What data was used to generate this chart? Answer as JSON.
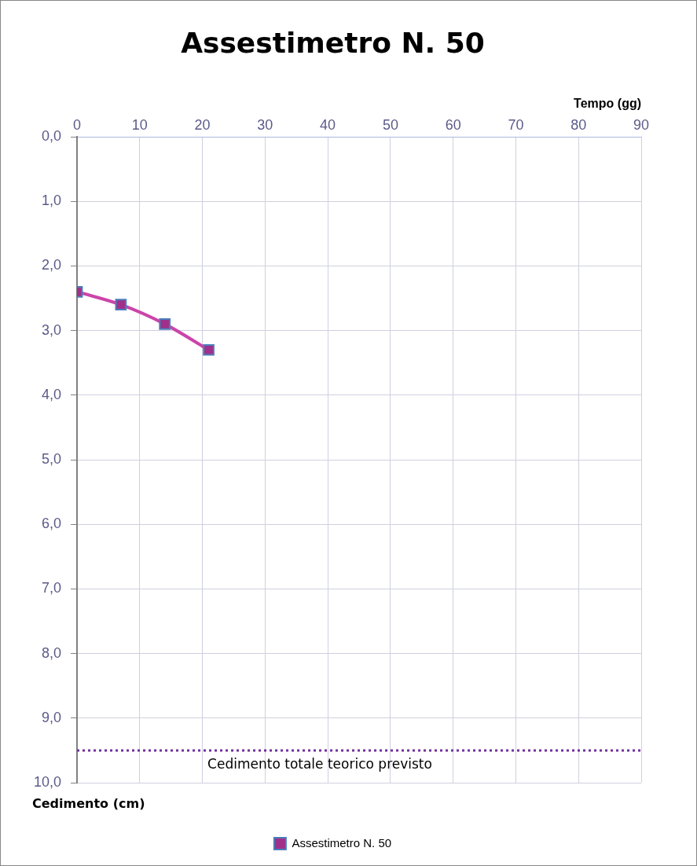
{
  "chart_data": {
    "type": "line",
    "title": "Assestimetro N. 50",
    "xlabel": "Tempo (gg)",
    "ylabel": "Cedimento (cm)",
    "series": [
      {
        "name": "Assestimetro N. 50",
        "color": "#cc44aa",
        "x": [
          0,
          7,
          14,
          21
        ],
        "values": [
          2.4,
          2.6,
          2.9,
          3.3
        ]
      }
    ],
    "xlim": [
      0,
      90
    ],
    "xticks": [
      0,
      10,
      20,
      30,
      40,
      50,
      60,
      70,
      80,
      90
    ],
    "ylim": [
      10,
      0
    ],
    "yticks": [
      {
        "value": 0,
        "label": "0,0"
      },
      {
        "value": 1,
        "label": "1,0"
      },
      {
        "value": 2,
        "label": "2,0"
      },
      {
        "value": 3,
        "label": "3,0"
      },
      {
        "value": 4,
        "label": "4,0"
      },
      {
        "value": 5,
        "label": "5,0"
      },
      {
        "value": 6,
        "label": "6,0"
      },
      {
        "value": 7,
        "label": "7,0"
      },
      {
        "value": 8,
        "label": "8,0"
      },
      {
        "value": 9,
        "label": "9,0"
      },
      {
        "value": 10,
        "label": "10,0"
      }
    ],
    "ref_lines": [
      {
        "axis": "y",
        "value": 9.5,
        "label": "Cedimento totale teorico previsto",
        "color": "#7030a0",
        "line_style": "dotted"
      }
    ],
    "grid": true,
    "legend": "bottom",
    "marker": "square",
    "line_style": "solid"
  }
}
